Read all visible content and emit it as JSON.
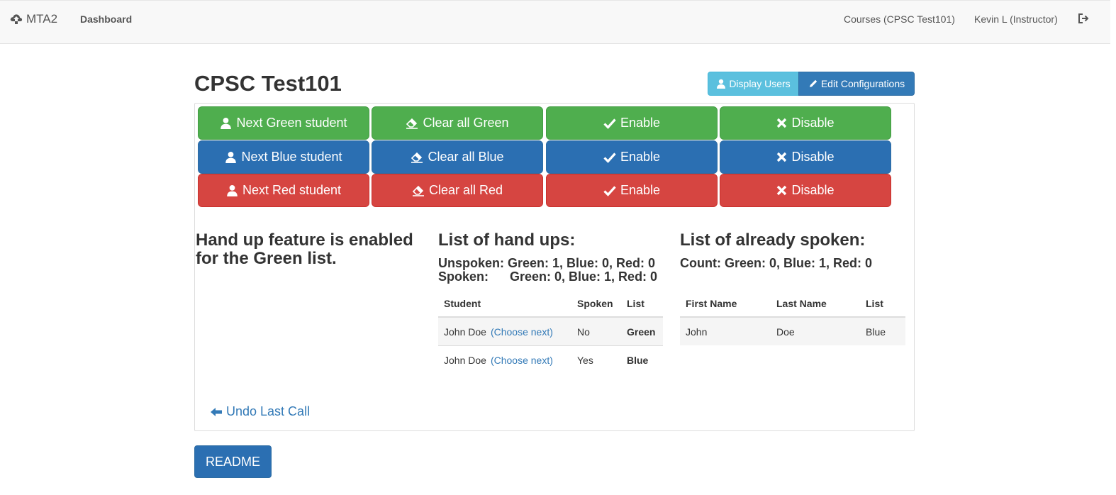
{
  "navbar": {
    "brand": "MTA2",
    "dashboard": "Dashboard",
    "courses": "Courses (CPSC Test101)",
    "user": "Kevin L (Instructor)"
  },
  "page": {
    "title": "CPSC Test101",
    "display_users": "Display Users",
    "edit_configurations": "Edit Configurations"
  },
  "controls": {
    "green": {
      "next": "Next Green student",
      "clear": "Clear all Green",
      "enable": "Enable",
      "disable": "Disable"
    },
    "blue": {
      "next": "Next Blue student",
      "clear": "Clear all Blue",
      "enable": "Enable",
      "disable": "Disable"
    },
    "red": {
      "next": "Next Red student",
      "clear": "Clear all Red",
      "enable": "Enable",
      "disable": "Disable"
    }
  },
  "status": {
    "line1": "Hand up feature is enabled",
    "line2": "for the Green list."
  },
  "hand_ups": {
    "title": "List of hand ups:",
    "unspoken": "Unspoken: Green: 1, Blue: 0, Red: 0",
    "spoken": "Spoken:      Green: 0, Blue: 1, Red: 0",
    "headers": [
      "Student",
      "Spoken",
      "List"
    ],
    "rows": [
      {
        "student": "John Doe",
        "link": "(Choose next)",
        "spoken": "No",
        "list": "Green"
      },
      {
        "student": "John Doe",
        "link": "(Choose next)",
        "spoken": "Yes",
        "list": "Blue"
      }
    ]
  },
  "already_spoken": {
    "title": "List of already spoken:",
    "count": "Count: Green: 0, Blue: 1, Red: 0",
    "headers": [
      "First Name",
      "Last Name",
      "List"
    ],
    "rows": [
      {
        "first": "John",
        "last": "Doe",
        "list": "Blue"
      }
    ]
  },
  "undo": "Undo Last Call",
  "readme": "README",
  "colors": {
    "green": "#4fae4e",
    "blue": "#2b6fb2",
    "red": "#d64541",
    "info": "#5bc0de",
    "link": "#337ab7"
  }
}
